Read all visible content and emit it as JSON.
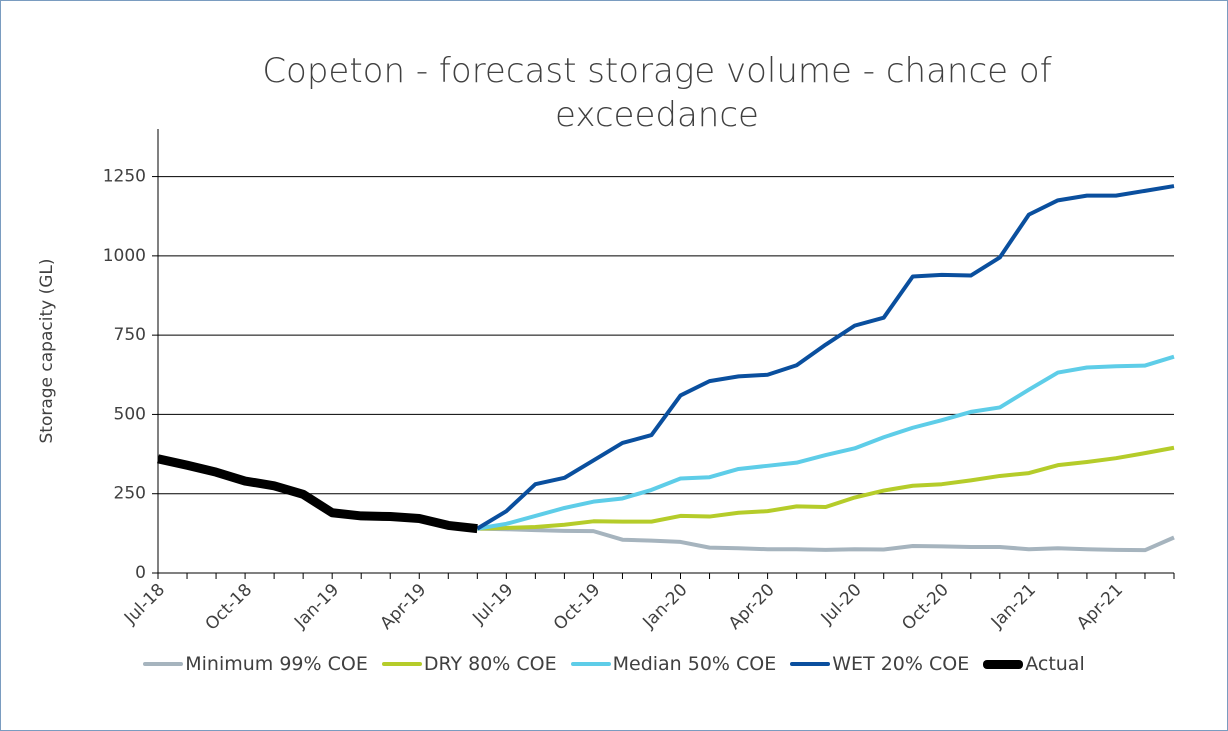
{
  "chart_data": {
    "type": "line",
    "title": "Copeton - forecast storage volume - chance of exceedance",
    "y_label": "Storage capacity (GL)",
    "categories": [
      "Jul-18",
      null,
      null,
      "Oct-18",
      null,
      null,
      "Jan-19",
      null,
      null,
      "Apr-19",
      null,
      null,
      "Jul-19",
      null,
      null,
      "Oct-19",
      null,
      null,
      "Jan-20",
      null,
      null,
      "Apr-20",
      null,
      null,
      "Jul-20",
      null,
      null,
      "Oct-20",
      null,
      null,
      "Jan-21",
      null,
      null,
      "Apr-21",
      null,
      null
    ],
    "series": [
      {
        "name": "Minimum 99% COE",
        "color": "#a6b4be",
        "width": 4,
        "values": [
          null,
          null,
          null,
          null,
          null,
          null,
          null,
          null,
          null,
          null,
          null,
          140,
          138,
          135,
          133,
          132,
          105,
          102,
          98,
          80,
          78,
          75,
          75,
          73,
          75,
          74,
          85,
          84,
          82,
          82,
          75,
          78,
          75,
          73,
          72,
          112
        ]
      },
      {
        "name": "DRY 80% COE",
        "color": "#b5cc2a",
        "width": 4,
        "values": [
          null,
          null,
          null,
          null,
          null,
          null,
          null,
          null,
          null,
          null,
          null,
          140,
          142,
          145,
          152,
          163,
          162,
          162,
          180,
          178,
          190,
          195,
          210,
          208,
          238,
          260,
          275,
          280,
          292,
          306,
          315,
          340,
          350,
          362,
          378,
          395
        ]
      },
      {
        "name": "Median 50% COE",
        "color": "#5ecde8",
        "width": 4,
        "values": [
          null,
          null,
          null,
          null,
          null,
          null,
          null,
          null,
          null,
          null,
          null,
          140,
          155,
          180,
          205,
          225,
          235,
          262,
          298,
          302,
          328,
          338,
          348,
          372,
          393,
          428,
          458,
          482,
          508,
          522,
          578,
          632,
          648,
          652,
          654,
          682
        ]
      },
      {
        "name": "WET 20% COE",
        "color": "#0a4f9e",
        "width": 4,
        "values": [
          null,
          null,
          null,
          null,
          null,
          null,
          null,
          null,
          null,
          null,
          null,
          140,
          195,
          280,
          300,
          355,
          410,
          435,
          560,
          605,
          620,
          625,
          655,
          720,
          780,
          805,
          935,
          940,
          938,
          995,
          1130,
          1175,
          1190,
          1190,
          1205,
          1220
        ]
      },
      {
        "name": "Actual",
        "color": "#000000",
        "width": 9,
        "values": [
          360,
          340,
          318,
          290,
          275,
          248,
          190,
          180,
          178,
          172,
          150,
          140,
          null,
          null,
          null,
          null,
          null,
          null,
          null,
          null,
          null,
          null,
          null,
          null,
          null,
          null,
          null,
          null,
          null,
          null,
          null,
          null,
          null,
          null,
          null,
          null
        ]
      }
    ],
    "ylim": [
      0,
      1400
    ],
    "yticks": [
      0,
      250,
      500,
      750,
      1000,
      1250
    ],
    "grid": true,
    "legend": "bottom"
  }
}
